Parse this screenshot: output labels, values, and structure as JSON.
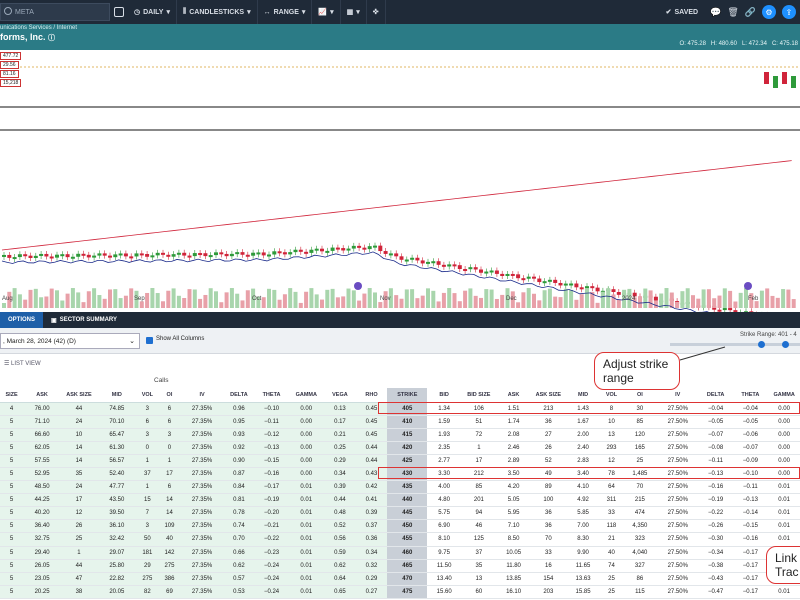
{
  "toolbar": {
    "search_placeholder": "META",
    "interval": "DAILY",
    "chart_type": "CANDLESTICKS",
    "range": "RANGE",
    "saved": "SAVED"
  },
  "symbol": {
    "category": "unications Services / Internet",
    "name": "forms, Inc.",
    "ohlc": [
      "O: 475.28",
      "H: 480.60",
      "L: 472.34",
      "C: 475.18"
    ]
  },
  "price_labels": [
    "477.72",
    "29.56",
    "81.16",
    "15,218"
  ],
  "x_axis": [
    "Aug",
    "Sep",
    "Oct",
    "Nov",
    "Dec",
    "2024",
    "Feb"
  ],
  "tabs": [
    "OPTIONS",
    "SECTOR SUMMARY"
  ],
  "controls": {
    "expiration": ", March 28, 2024 (42) (D)",
    "show_all": "Show All Columns",
    "strike_range_label": "Strike Range: 401 - 4"
  },
  "list_view": "LIST VIEW",
  "calls_label": "Calls",
  "columns": [
    "SIZE",
    "ASK",
    "ASK SIZE",
    "MID",
    "VOL",
    "OI",
    "IV",
    "DELTA",
    "THETA",
    "GAMMA",
    "VEGA",
    "RHO",
    "STRIKE",
    "BID",
    "BID SIZE",
    "ASK",
    "ASK SIZE",
    "MID",
    "VOL",
    "OI",
    "IV",
    "DELTA",
    "THETA",
    "GAMMA"
  ],
  "rows": [
    [
      "4",
      "76.00",
      "44",
      "74.85",
      "3",
      "6",
      "27.35%",
      "0.96",
      "−0.10",
      "0.00",
      "0.13",
      "0.45",
      "405",
      "1.34",
      "106",
      "1.51",
      "213",
      "1.43",
      "8",
      "30",
      "27.50%",
      "−0.04",
      "−0.04",
      "0.00"
    ],
    [
      "5",
      "71.10",
      "24",
      "70.10",
      "6",
      "6",
      "27.35%",
      "0.95",
      "−0.11",
      "0.00",
      "0.17",
      "0.45",
      "410",
      "1.59",
      "51",
      "1.74",
      "36",
      "1.67",
      "10",
      "85",
      "27.50%",
      "−0.05",
      "−0.05",
      "0.00"
    ],
    [
      "5",
      "66.60",
      "10",
      "65.47",
      "3",
      "3",
      "27.35%",
      "0.93",
      "−0.12",
      "0.00",
      "0.21",
      "0.45",
      "415",
      "1.93",
      "72",
      "2.08",
      "27",
      "2.00",
      "13",
      "120",
      "27.50%",
      "−0.07",
      "−0.06",
      "0.00"
    ],
    [
      "5",
      "62.05",
      "14",
      "61.30",
      "0",
      "0",
      "27.35%",
      "0.92",
      "−0.13",
      "0.00",
      "0.25",
      "0.44",
      "420",
      "2.35",
      "1",
      "2.46",
      "26",
      "2.40",
      "293",
      "165",
      "27.50%",
      "−0.08",
      "−0.07",
      "0.00"
    ],
    [
      "5",
      "57.55",
      "14",
      "56.57",
      "1",
      "1",
      "27.35%",
      "0.90",
      "−0.15",
      "0.00",
      "0.29",
      "0.44",
      "425",
      "2.77",
      "17",
      "2.89",
      "52",
      "2.83",
      "12",
      "25",
      "27.50%",
      "−0.11",
      "−0.09",
      "0.00"
    ],
    [
      "5",
      "52.95",
      "35",
      "52.40",
      "37",
      "17",
      "27.35%",
      "0.87",
      "−0.16",
      "0.00",
      "0.34",
      "0.43",
      "430",
      "3.30",
      "212",
      "3.50",
      "49",
      "3.40",
      "78",
      "1,485",
      "27.50%",
      "−0.13",
      "−0.10",
      "0.00"
    ],
    [
      "5",
      "48.50",
      "24",
      "47.77",
      "1",
      "6",
      "27.35%",
      "0.84",
      "−0.17",
      "0.01",
      "0.39",
      "0.42",
      "435",
      "4.00",
      "85",
      "4.20",
      "89",
      "4.10",
      "64",
      "70",
      "27.50%",
      "−0.16",
      "−0.11",
      "0.01"
    ],
    [
      "5",
      "44.25",
      "17",
      "43.50",
      "15",
      "14",
      "27.35%",
      "0.81",
      "−0.19",
      "0.01",
      "0.44",
      "0.41",
      "440",
      "4.80",
      "201",
      "5.05",
      "100",
      "4.92",
      "311",
      "215",
      "27.50%",
      "−0.19",
      "−0.13",
      "0.01"
    ],
    [
      "5",
      "40.20",
      "12",
      "39.50",
      "7",
      "14",
      "27.35%",
      "0.78",
      "−0.20",
      "0.01",
      "0.48",
      "0.39",
      "445",
      "5.75",
      "94",
      "5.95",
      "36",
      "5.85",
      "33",
      "474",
      "27.50%",
      "−0.22",
      "−0.14",
      "0.01"
    ],
    [
      "5",
      "36.40",
      "26",
      "36.10",
      "3",
      "109",
      "27.35%",
      "0.74",
      "−0.21",
      "0.01",
      "0.52",
      "0.37",
      "450",
      "6.90",
      "46",
      "7.10",
      "36",
      "7.00",
      "118",
      "4,350",
      "27.50%",
      "−0.26",
      "−0.15",
      "0.01"
    ],
    [
      "5",
      "32.75",
      "25",
      "32.42",
      "50",
      "40",
      "27.35%",
      "0.70",
      "−0.22",
      "0.01",
      "0.56",
      "0.36",
      "455",
      "8.10",
      "125",
      "8.50",
      "70",
      "8.30",
      "21",
      "323",
      "27.50%",
      "−0.30",
      "−0.16",
      "0.01"
    ],
    [
      "5",
      "29.40",
      "1",
      "29.07",
      "181",
      "142",
      "27.35%",
      "0.66",
      "−0.23",
      "0.01",
      "0.59",
      "0.34",
      "460",
      "9.75",
      "37",
      "10.05",
      "33",
      "9.90",
      "40",
      "4,040",
      "27.50%",
      "−0.34",
      "−0.17",
      "0.01"
    ],
    [
      "5",
      "26.05",
      "44",
      "25.80",
      "29",
      "275",
      "27.35%",
      "0.62",
      "−0.24",
      "0.01",
      "0.62",
      "0.32",
      "465",
      "11.50",
      "35",
      "11.80",
      "16",
      "11.65",
      "74",
      "327",
      "27.50%",
      "−0.38",
      "−0.17",
      "0.01"
    ],
    [
      "5",
      "23.05",
      "47",
      "22.82",
      "275",
      "386",
      "27.35%",
      "0.57",
      "−0.24",
      "0.01",
      "0.64",
      "0.29",
      "470",
      "13.40",
      "13",
      "13.85",
      "154",
      "13.63",
      "25",
      "86",
      "27.50%",
      "−0.43",
      "−0.17",
      "0.01"
    ],
    [
      "5",
      "20.25",
      "38",
      "20.05",
      "82",
      "69",
      "27.35%",
      "0.53",
      "−0.24",
      "0.01",
      "0.65",
      "0.27",
      "475",
      "15.60",
      "60",
      "16.10",
      "203",
      "15.85",
      "25",
      "115",
      "27.50%",
      "−0.47",
      "−0.17",
      "0.01"
    ]
  ],
  "callouts": {
    "adjust": "Adjust strike range",
    "link": "Link Trac"
  },
  "colors": {
    "up": "#2e9a3a",
    "down": "#d0243a",
    "header": "#1f2a38",
    "symbol_bar": "#2b7b86",
    "accent": "#1e6fd0"
  }
}
